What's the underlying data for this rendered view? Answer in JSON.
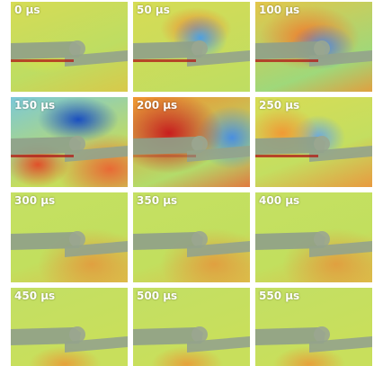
{
  "panels": [
    {
      "label": "0 μs"
    },
    {
      "label": "50 μs"
    },
    {
      "label": "100 μs"
    },
    {
      "label": "150 μs"
    },
    {
      "label": "200 μs"
    },
    {
      "label": "250 μs"
    },
    {
      "label": "300 μs"
    },
    {
      "label": "350 μs"
    },
    {
      "label": "400 μs"
    },
    {
      "label": "450 μs"
    },
    {
      "label": "500 μs"
    },
    {
      "label": "550 μs"
    }
  ]
}
